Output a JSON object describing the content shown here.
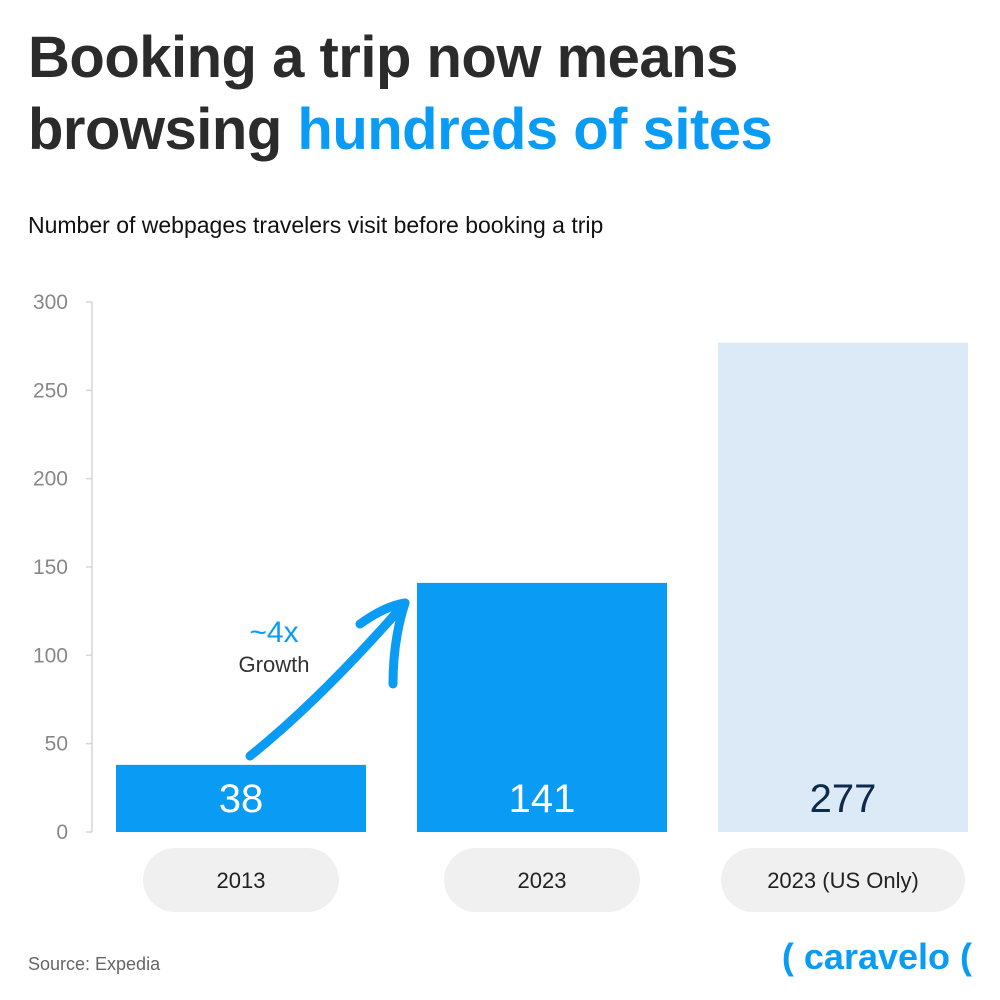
{
  "title": {
    "part1": "Booking a trip now means browsing ",
    "accent": "hundreds of sites"
  },
  "colors": {
    "accent": "#0a9cf5",
    "bar_primary": "#0a9cf5",
    "bar_light": "#dbeaf6",
    "label_dark": "#0e2a4d",
    "category_pill": "#f0f0f0"
  },
  "chart_data": {
    "type": "bar",
    "title": "Number of webpages travelers visit before booking a trip",
    "categories": [
      "2013",
      "2023",
      "2023 (US Only)"
    ],
    "values": [
      38,
      141,
      277
    ],
    "value_labels": [
      "38",
      "141",
      "277"
    ],
    "ylim": [
      0,
      300
    ],
    "yticks": [
      0,
      50,
      100,
      150,
      200,
      250,
      300
    ],
    "grid": false,
    "annotation": {
      "value": "~4x",
      "label": "Growth"
    }
  },
  "footer": {
    "source": "Source: Expedia",
    "brand": "( caravelo ("
  }
}
